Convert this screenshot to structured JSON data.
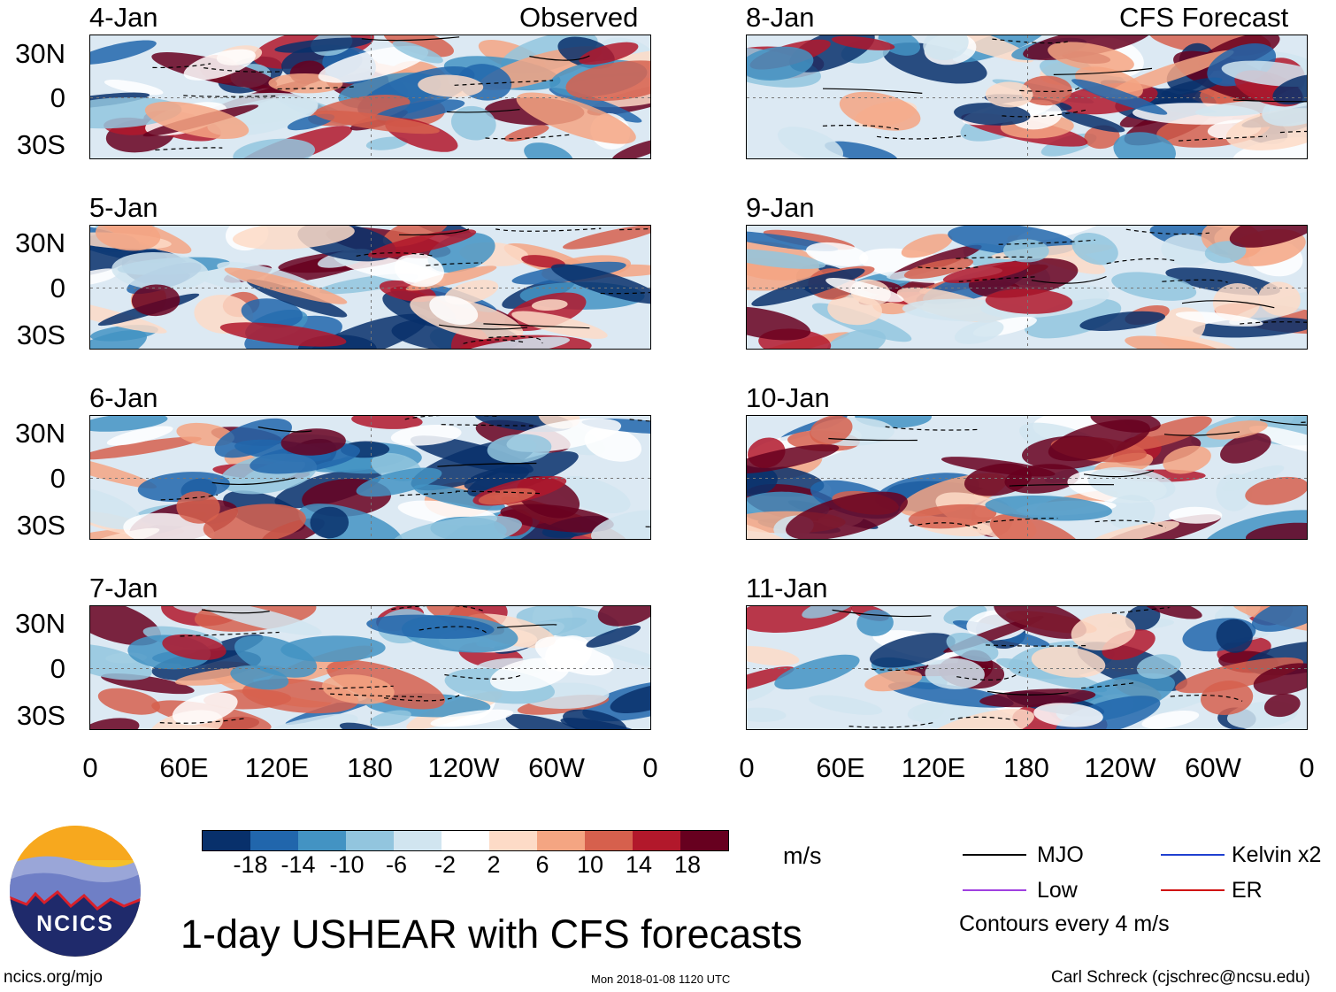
{
  "header": {
    "left": "Observed",
    "right": "CFS Forecast"
  },
  "panels_left": [
    "4-Jan",
    "5-Jan",
    "6-Jan",
    "7-Jan"
  ],
  "panels_right": [
    "8-Jan",
    "9-Jan",
    "10-Jan",
    "11-Jan"
  ],
  "lat_labels": [
    "30N",
    "0",
    "30S"
  ],
  "lon_labels": [
    "0",
    "60E",
    "120E",
    "180",
    "120W",
    "60W",
    "0"
  ],
  "colorbar": {
    "ticks": [
      "-18",
      "-14",
      "-10",
      "-6",
      "-2",
      "2",
      "6",
      "10",
      "14",
      "18"
    ],
    "colors": [
      "#08306b",
      "#2166ac",
      "#4393c3",
      "#92c5de",
      "#d1e5f0",
      "#ffffff",
      "#fddbc7",
      "#f4a582",
      "#d6604d",
      "#b2182b",
      "#67001f"
    ],
    "unit": "m/s"
  },
  "legend": {
    "mjo": "MJO",
    "kelvin": "Kelvin x2",
    "low": "Low",
    "er": "ER",
    "contours": "Contours every 4 m/s",
    "mjo_color": "#000000",
    "kelvin_color": "#2040d0",
    "low_color": "#a040e0",
    "er_color": "#d01010"
  },
  "logo": {
    "text": "NCICS"
  },
  "title": "1-day USHEAR with CFS forecasts",
  "footer": {
    "url": "ncics.org/mjo",
    "timestamp": "Mon 2018-01-08 1120 UTC",
    "credit": "Carl Schreck (cjschrec@ncsu.edu)"
  }
}
